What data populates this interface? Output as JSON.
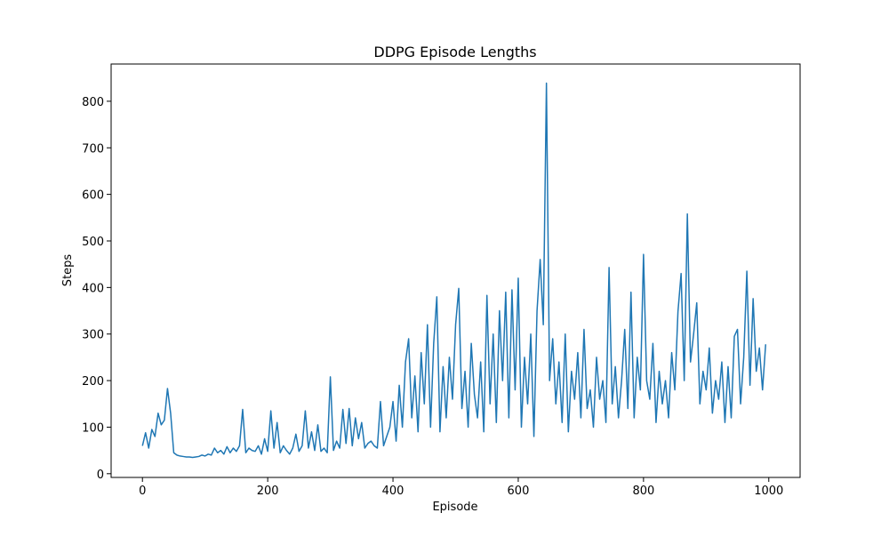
{
  "chart_data": {
    "type": "line",
    "title": "DDPG Episode Lengths",
    "x_label": "Episode",
    "y_label": "Steps",
    "x": [
      0,
      5,
      10,
      15,
      20,
      25,
      30,
      35,
      40,
      45,
      50,
      55,
      60,
      65,
      70,
      75,
      80,
      85,
      90,
      95,
      100,
      105,
      110,
      115,
      120,
      125,
      130,
      135,
      140,
      145,
      150,
      155,
      160,
      165,
      170,
      175,
      180,
      185,
      190,
      195,
      200,
      205,
      210,
      215,
      220,
      225,
      230,
      235,
      240,
      245,
      250,
      255,
      260,
      265,
      270,
      275,
      280,
      285,
      290,
      295,
      300,
      305,
      310,
      315,
      320,
      325,
      330,
      335,
      340,
      345,
      350,
      355,
      360,
      365,
      370,
      375,
      380,
      385,
      390,
      395,
      400,
      405,
      410,
      415,
      420,
      425,
      430,
      435,
      440,
      445,
      450,
      455,
      460,
      465,
      470,
      475,
      480,
      485,
      490,
      495,
      500,
      505,
      510,
      515,
      520,
      525,
      530,
      535,
      540,
      545,
      550,
      555,
      560,
      565,
      570,
      575,
      580,
      585,
      590,
      595,
      600,
      605,
      610,
      615,
      620,
      625,
      630,
      635,
      640,
      645,
      650,
      655,
      660,
      665,
      670,
      675,
      680,
      685,
      690,
      695,
      700,
      705,
      710,
      715,
      720,
      725,
      730,
      735,
      740,
      745,
      750,
      755,
      760,
      765,
      770,
      775,
      780,
      785,
      790,
      795,
      800,
      805,
      810,
      815,
      820,
      825,
      830,
      835,
      840,
      845,
      850,
      855,
      860,
      865,
      870,
      875,
      880,
      885,
      890,
      895,
      900,
      905,
      910,
      915,
      920,
      925,
      930,
      935,
      940,
      945,
      950,
      955,
      960,
      965,
      970,
      975,
      980,
      985,
      990,
      995
    ],
    "series": [
      {
        "color": "#1f77b4",
        "values": [
          60,
          88,
          55,
          95,
          80,
          130,
          105,
          115,
          183,
          130,
          45,
          40,
          38,
          37,
          36,
          36,
          35,
          36,
          37,
          40,
          38,
          42,
          40,
          55,
          45,
          50,
          42,
          58,
          45,
          55,
          48,
          60,
          138,
          45,
          55,
          50,
          48,
          60,
          42,
          75,
          48,
          135,
          55,
          110,
          45,
          60,
          50,
          42,
          55,
          85,
          48,
          60,
          135,
          55,
          90,
          50,
          105,
          48,
          55,
          45,
          208,
          50,
          70,
          55,
          138,
          65,
          140,
          60,
          120,
          75,
          110,
          55,
          65,
          70,
          60,
          55,
          155,
          60,
          80,
          100,
          155,
          70,
          190,
          100,
          240,
          290,
          120,
          210,
          90,
          260,
          150,
          320,
          100,
          280,
          380,
          90,
          230,
          120,
          250,
          160,
          320,
          398,
          140,
          220,
          100,
          280,
          170,
          120,
          240,
          90,
          383,
          150,
          300,
          110,
          350,
          200,
          390,
          120,
          395,
          180,
          420,
          100,
          250,
          150,
          300,
          80,
          350,
          460,
          320,
          839,
          200,
          290,
          150,
          240,
          110,
          300,
          90,
          220,
          160,
          260,
          120,
          310,
          140,
          180,
          100,
          250,
          160,
          200,
          110,
          443,
          150,
          230,
          120,
          200,
          310,
          140,
          390,
          120,
          250,
          180,
          471,
          200,
          160,
          280,
          110,
          220,
          150,
          200,
          120,
          260,
          180,
          348,
          430,
          200,
          558,
          240,
          300,
          367,
          150,
          220,
          180,
          270,
          130,
          200,
          160,
          240,
          110,
          230,
          120,
          295,
          310,
          150,
          250,
          435,
          190,
          376,
          220,
          270,
          180,
          278
        ]
      }
    ],
    "xlim": [
      -50,
      1050
    ],
    "ylim": [
      -8,
      880
    ],
    "xticks": [
      0,
      200,
      400,
      600,
      800,
      1000
    ],
    "yticks": [
      0,
      100,
      200,
      300,
      400,
      500,
      600,
      700,
      800
    ]
  }
}
